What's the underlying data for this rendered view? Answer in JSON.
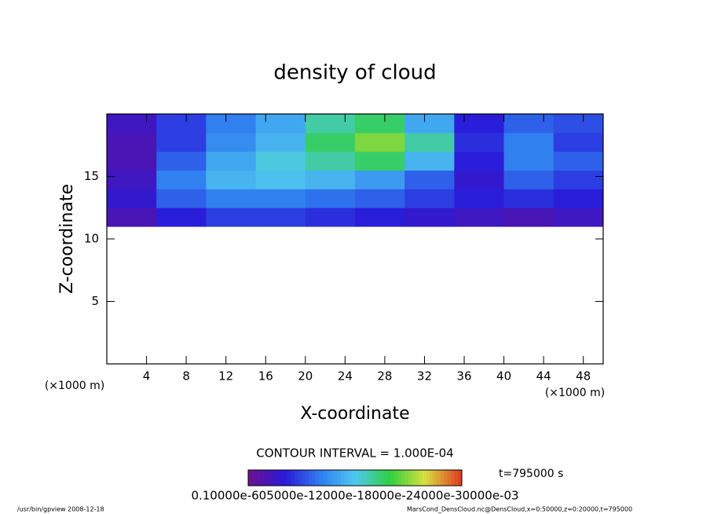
{
  "chart_data": {
    "type": "contour",
    "title": "density of cloud",
    "x_label": "X-coordinate",
    "y_label": "Z-coordinate",
    "x_unit": "(×1000 m)",
    "y_unit": "(×1000 m)",
    "xlim": [
      0,
      50
    ],
    "ylim": [
      0,
      20
    ],
    "xticks": [
      4,
      8,
      12,
      16,
      20,
      24,
      28,
      32,
      36,
      40,
      44,
      48
    ],
    "yticks": [
      5,
      10,
      15
    ],
    "xbins": [
      0,
      5,
      10,
      15,
      20,
      25,
      30,
      35,
      40,
      45,
      50
    ],
    "ybins": [
      11,
      12.5,
      14,
      15.5,
      17,
      18.5,
      20
    ],
    "values": [
      [
        0.03,
        0.06,
        0.08,
        0.08,
        0.07,
        0.06,
        0.05,
        0.04,
        0.03,
        0.04
      ],
      [
        0.05,
        0.1,
        0.12,
        0.12,
        0.11,
        0.1,
        0.08,
        0.06,
        0.07,
        0.06
      ],
      [
        0.04,
        0.12,
        0.16,
        0.17,
        0.16,
        0.14,
        0.1,
        0.05,
        0.1,
        0.08
      ],
      [
        0.03,
        0.1,
        0.15,
        0.18,
        0.2,
        0.22,
        0.16,
        0.06,
        0.12,
        0.1
      ],
      [
        0.03,
        0.08,
        0.13,
        0.16,
        0.22,
        0.26,
        0.2,
        0.07,
        0.12,
        0.08
      ],
      [
        0.04,
        0.08,
        0.12,
        0.15,
        0.2,
        0.22,
        0.15,
        0.06,
        0.1,
        0.09
      ]
    ],
    "clim": [
      0,
      0.35
    ],
    "colormap": [
      "#6a1090",
      "#2a1ad8",
      "#2f7cf0",
      "#4fc8f0",
      "#30d040",
      "#d8e040",
      "#e04020"
    ],
    "contour_interval": "CONTOUR INTERVAL = 1.000E-04",
    "colorbar_label": "0.10000e-605000e-12000e-18000e-24000e-30000e-03",
    "time_label": "t=795000 s",
    "footer_left": "/usr/bin/gpview   2008-12-18",
    "footer_right": "MarsCond_DensCloud.nc@DensCloud,x=0:50000,z=0:20000,t=795000"
  }
}
